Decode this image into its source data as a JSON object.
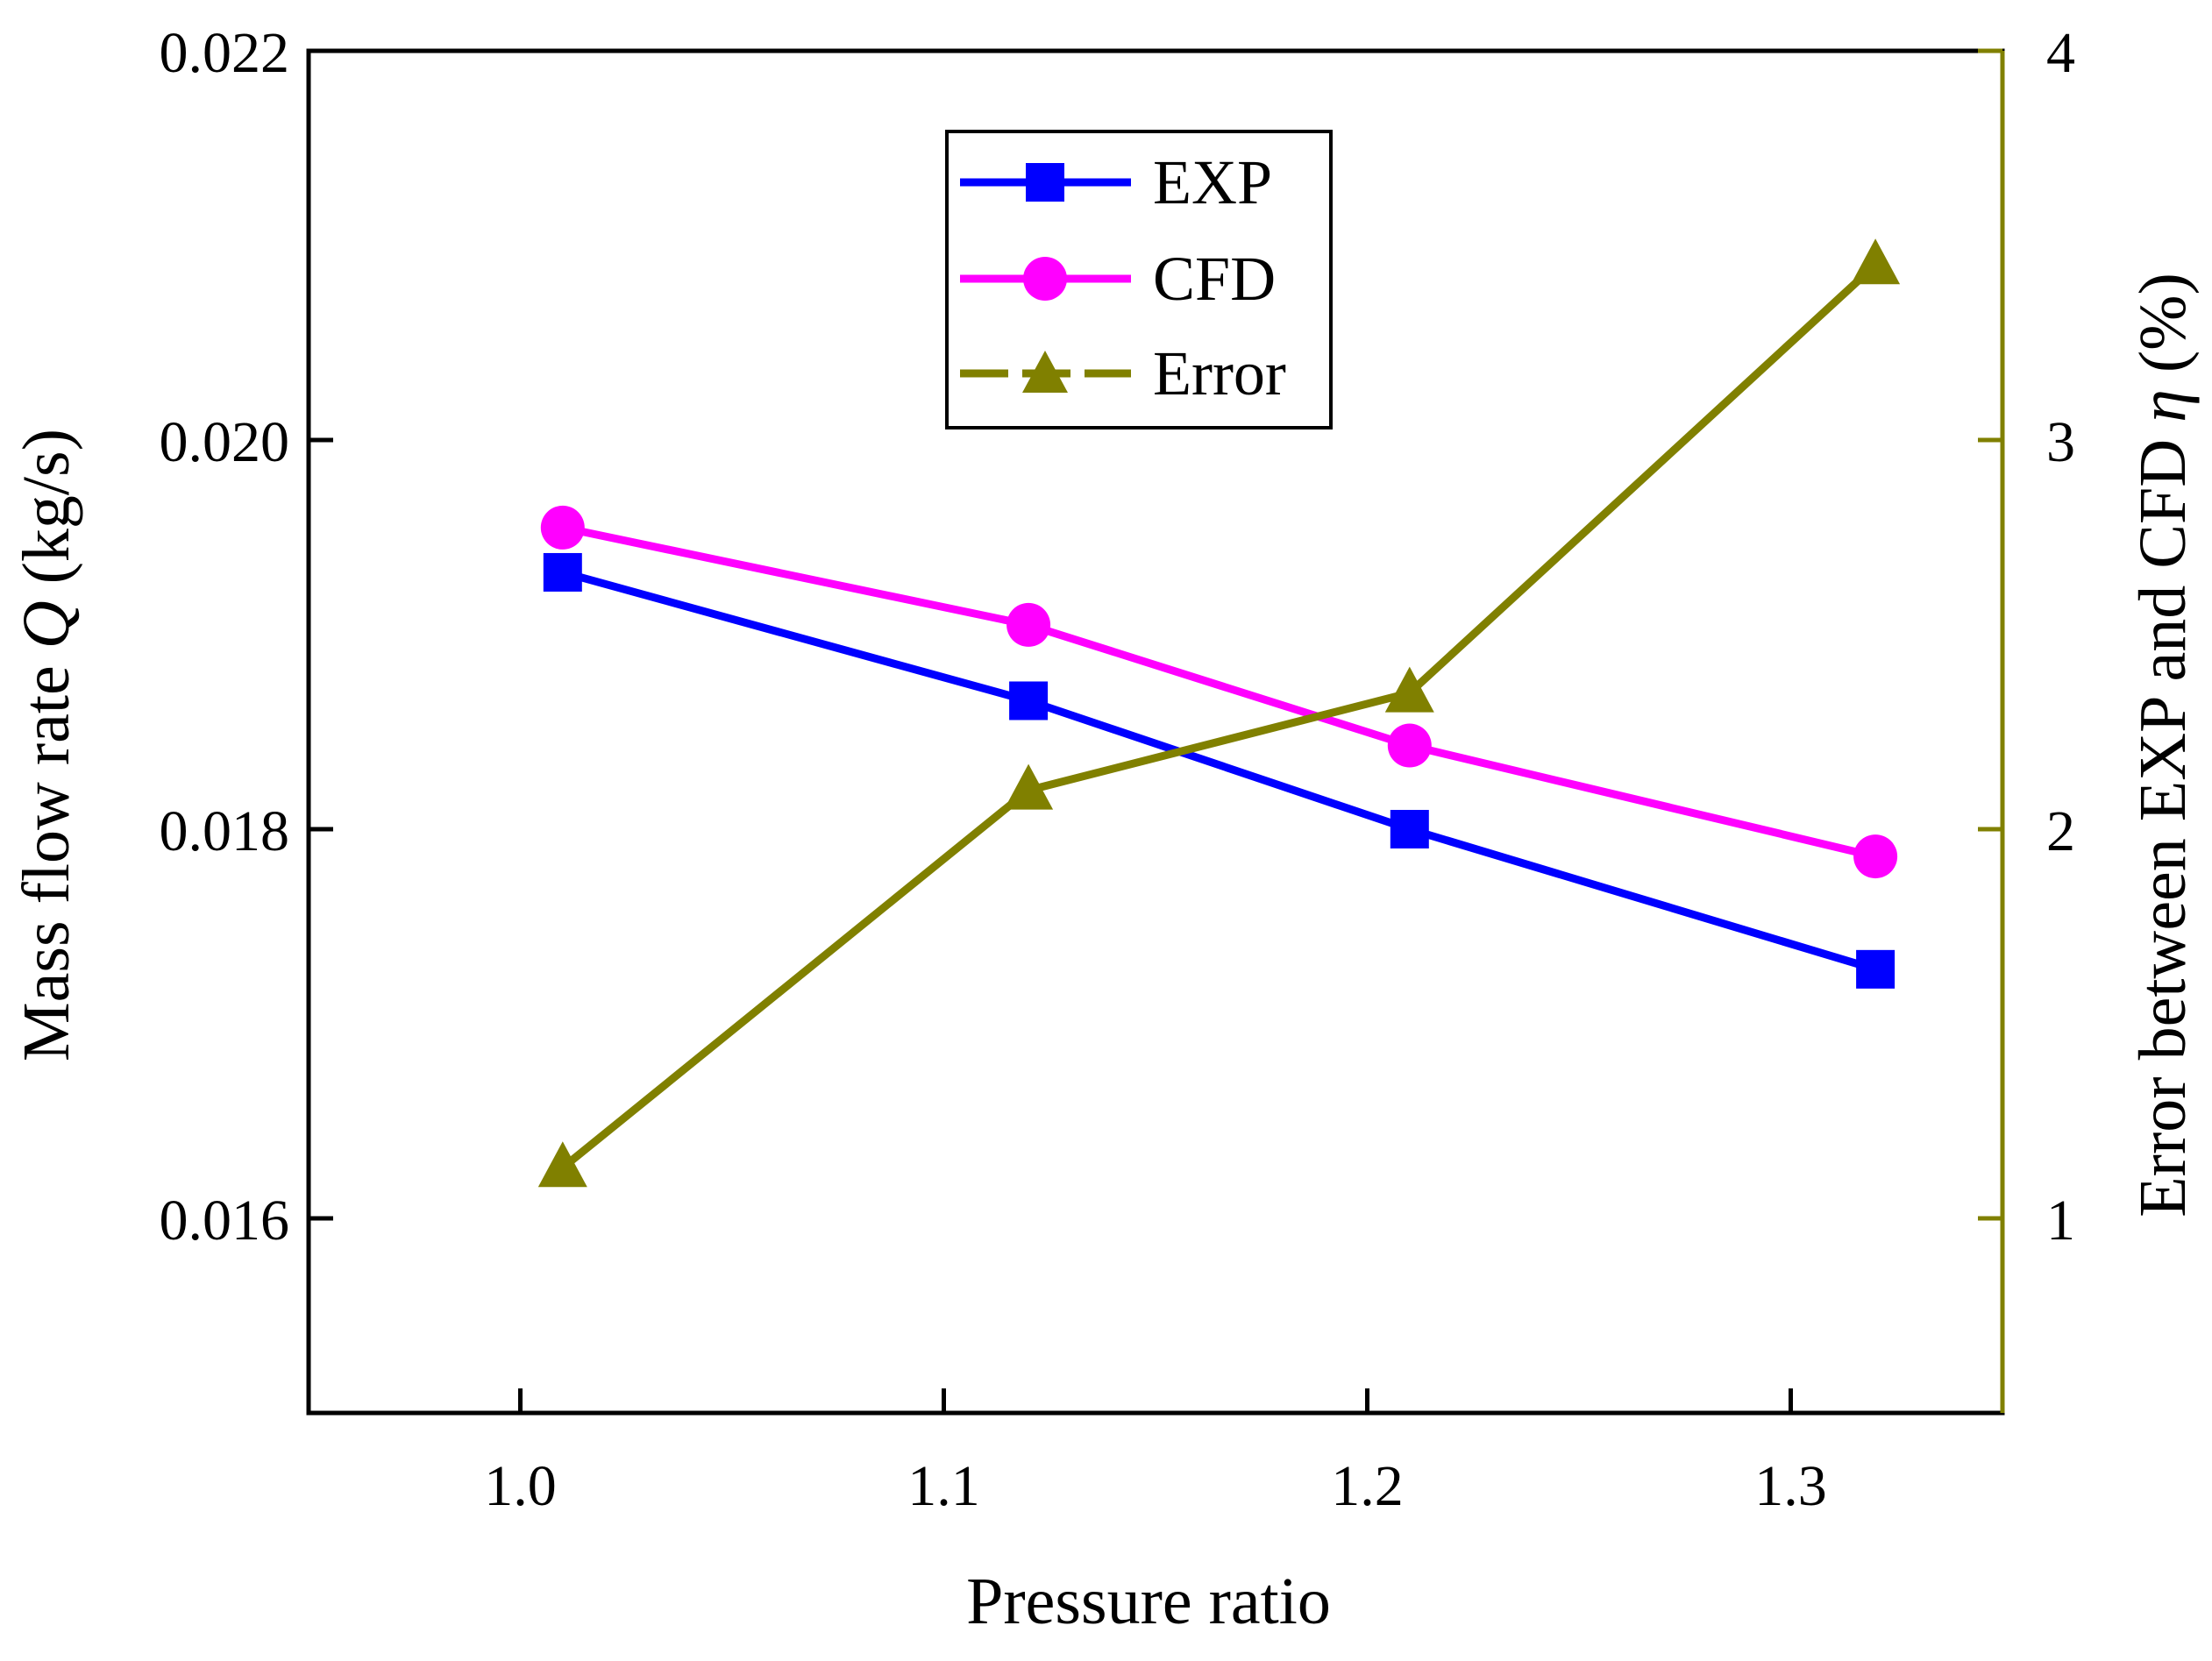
{
  "chart_data": {
    "type": "line",
    "xlabel": "Pressure ratio",
    "ylabel_prefix": "Mass flow rate ",
    "ylabel_symbol": "Q",
    "ylabel_suffix": " (kg/s)",
    "y2label_prefix": "Error between EXP and CFD ",
    "y2label_symbol": "η",
    "y2label_suffix": " (%)",
    "xlim": [
      0.95,
      1.35
    ],
    "ylim": [
      0.015,
      0.022
    ],
    "y2lim": [
      0.5,
      4.0
    ],
    "x": [
      1.01,
      1.12,
      1.21,
      1.32
    ],
    "x_ticks": [
      "1.0",
      "1.1",
      "1.2",
      "1.3"
    ],
    "x_tick_values": [
      1.0,
      1.1,
      1.2,
      1.3
    ],
    "y_ticks": [
      "0.016",
      "0.018",
      "0.020",
      "0.022"
    ],
    "y_tick_values": [
      0.016,
      0.018,
      0.02,
      0.022
    ],
    "y2_ticks": [
      "1",
      "2",
      "3",
      "4"
    ],
    "y2_tick_values": [
      1,
      2,
      3,
      4
    ],
    "series": [
      {
        "name": "EXP",
        "axis": "left",
        "marker": "square",
        "color": "#0000ff",
        "values": [
          0.01932,
          0.01866,
          0.018,
          0.01728
        ]
      },
      {
        "name": "CFD",
        "axis": "left",
        "marker": "circle",
        "color": "#ff00ff",
        "values": [
          0.01955,
          0.01905,
          0.01843,
          0.01786
        ]
      },
      {
        "name": "Error",
        "axis": "right",
        "marker": "triangle",
        "color": "#808000",
        "values": [
          1.13,
          2.1,
          2.35,
          3.45
        ]
      }
    ],
    "legend_position": "top-center",
    "y2_axis_color": "#808000"
  }
}
